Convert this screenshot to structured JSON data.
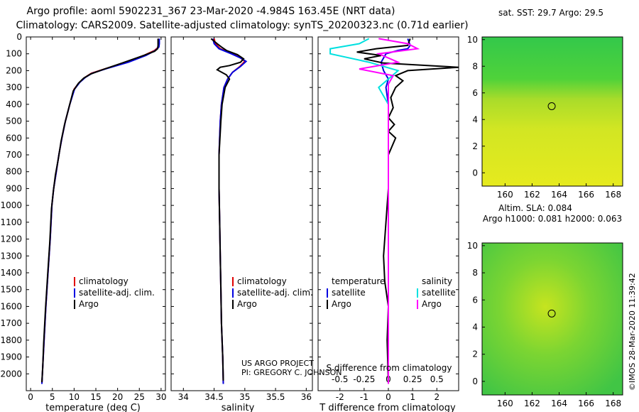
{
  "header": {
    "title_line1": "Argo profile: aoml 5902231_367 23-Mar-2020 -4.984S 163.45E (NRT data)",
    "title_line2": "Climatology: CARS2009. Satellite-adjusted climatology: synTS_20200323.nc (0.71d earlier)"
  },
  "colors": {
    "climatology": "#e00000",
    "satellite": "#0000e0",
    "argo": "#000000",
    "salinity_satellite": "#00e0e0",
    "salinity_argo": "#ff00ff"
  },
  "credits": {
    "line1": "US ARGO PROJECT",
    "line2": "PI: GREGORY C. JOHNSON",
    "stamp": "©IMOS 28-Mar-2020 11:39:42"
  },
  "chart_data": [
    {
      "type": "line",
      "panel": "temperature",
      "xlabel": "temperature (deg C)",
      "ylabel": "",
      "xlim": [
        -1,
        31
      ],
      "ylim": [
        2100,
        0
      ],
      "x_ticks": [
        0,
        5,
        10,
        15,
        20,
        25,
        30
      ],
      "y_ticks": [
        0,
        100,
        200,
        300,
        400,
        500,
        600,
        700,
        800,
        900,
        1000,
        1100,
        1200,
        1300,
        1400,
        1500,
        1600,
        1700,
        1800,
        1900,
        2000
      ],
      "legend": [
        "climatology",
        "satellite-adj. clim.",
        "Argo"
      ],
      "legend_placement": "lower-right",
      "series": [
        {
          "name": "climatology",
          "color": "#e00000",
          "points": [
            [
              29.5,
              10
            ],
            [
              29.5,
              40
            ],
            [
              29.4,
              60
            ],
            [
              28.5,
              80
            ],
            [
              26,
              110
            ],
            [
              22,
              150
            ],
            [
              17,
              190
            ],
            [
              14,
              215
            ],
            [
              12.5,
              240
            ],
            [
              11.2,
              270
            ],
            [
              10,
              310
            ],
            [
              9,
              400
            ],
            [
              8,
              500
            ],
            [
              7.2,
              600
            ],
            [
              6.5,
              700
            ],
            [
              5.9,
              800
            ],
            [
              5.3,
              900
            ],
            [
              4.9,
              1000
            ],
            [
              4.5,
              1200
            ],
            [
              4.0,
              1400
            ],
            [
              3.5,
              1600
            ],
            [
              3.1,
              1800
            ],
            [
              2.8,
              1950
            ],
            [
              2.6,
              2060
            ]
          ]
        },
        {
          "name": "satellite-adj. clim.",
          "color": "#0000e0",
          "points": [
            [
              29.6,
              10
            ],
            [
              29.6,
              40
            ],
            [
              29.5,
              60
            ],
            [
              28.7,
              80
            ],
            [
              26.5,
              110
            ],
            [
              22.5,
              150
            ],
            [
              17.2,
              190
            ],
            [
              14.2,
              215
            ],
            [
              12.6,
              240
            ],
            [
              11.3,
              270
            ],
            [
              10.1,
              310
            ],
            [
              9,
              400
            ],
            [
              8,
              500
            ],
            [
              7.2,
              600
            ],
            [
              6.5,
              700
            ],
            [
              5.9,
              800
            ],
            [
              5.3,
              900
            ],
            [
              4.9,
              1000
            ],
            [
              4.5,
              1200
            ],
            [
              4.0,
              1400
            ],
            [
              3.5,
              1600
            ],
            [
              3.1,
              1800
            ],
            [
              2.8,
              1950
            ],
            [
              2.6,
              2060
            ]
          ]
        },
        {
          "name": "Argo",
          "color": "#000000",
          "points": [
            [
              29.3,
              10
            ],
            [
              29.3,
              50
            ],
            [
              29.2,
              70
            ],
            [
              28.5,
              85
            ],
            [
              26,
              110
            ],
            [
              21,
              155
            ],
            [
              16.5,
              195
            ],
            [
              13.8,
              220
            ],
            [
              12.2,
              245
            ],
            [
              11,
              275
            ],
            [
              9.8,
              320
            ],
            [
              8.8,
              420
            ],
            [
              7.8,
              520
            ],
            [
              7,
              620
            ],
            [
              6.4,
              720
            ],
            [
              5.7,
              820
            ],
            [
              5.2,
              920
            ],
            [
              4.8,
              1020
            ],
            [
              4.4,
              1220
            ],
            [
              3.9,
              1420
            ],
            [
              3.4,
              1620
            ],
            [
              3.0,
              1820
            ],
            [
              2.8,
              1950
            ],
            [
              2.6,
              2050
            ]
          ]
        }
      ]
    },
    {
      "type": "line",
      "panel": "salinity",
      "xlabel": "salinity",
      "ylabel": "",
      "xlim": [
        33.8,
        36.1
      ],
      "ylim": [
        2100,
        0
      ],
      "x_ticks": [
        34,
        34.5,
        35,
        35.5,
        36
      ],
      "legend": [
        "climatology",
        "satellite-adj. clim.",
        "Argo"
      ],
      "legend_placement": "lower-right",
      "series": [
        {
          "name": "climatology",
          "color": "#e00000",
          "points": [
            [
              34.5,
              10
            ],
            [
              34.52,
              40
            ],
            [
              34.6,
              70
            ],
            [
              34.8,
              100
            ],
            [
              34.93,
              125
            ],
            [
              35.0,
              145
            ],
            [
              34.92,
              175
            ],
            [
              34.8,
              210
            ],
            [
              34.72,
              250
            ],
            [
              34.66,
              300
            ],
            [
              34.62,
              400
            ],
            [
              34.6,
              500
            ],
            [
              34.58,
              700
            ],
            [
              34.58,
              900
            ],
            [
              34.59,
              1100
            ],
            [
              34.6,
              1300
            ],
            [
              34.61,
              1500
            ],
            [
              34.62,
              1700
            ],
            [
              34.64,
              1900
            ],
            [
              34.65,
              2060
            ]
          ]
        },
        {
          "name": "satellite-adj. clim.",
          "color": "#0000e0",
          "points": [
            [
              34.48,
              10
            ],
            [
              34.5,
              40
            ],
            [
              34.58,
              70
            ],
            [
              34.78,
              100
            ],
            [
              34.93,
              125
            ],
            [
              35.02,
              145
            ],
            [
              34.93,
              175
            ],
            [
              34.8,
              210
            ],
            [
              34.72,
              250
            ],
            [
              34.66,
              300
            ],
            [
              34.62,
              400
            ],
            [
              34.6,
              500
            ],
            [
              34.58,
              700
            ],
            [
              34.58,
              900
            ],
            [
              34.59,
              1100
            ],
            [
              34.6,
              1300
            ],
            [
              34.61,
              1500
            ],
            [
              34.62,
              1700
            ],
            [
              34.64,
              1900
            ],
            [
              34.65,
              2060
            ]
          ]
        },
        {
          "name": "Argo",
          "color": "#000000",
          "points": [
            [
              34.45,
              10
            ],
            [
              34.55,
              40
            ],
            [
              34.62,
              60
            ],
            [
              34.7,
              80
            ],
            [
              34.88,
              105
            ],
            [
              34.98,
              130
            ],
            [
              34.93,
              150
            ],
            [
              34.75,
              170
            ],
            [
              34.6,
              180
            ],
            [
              34.55,
              195
            ],
            [
              34.7,
              225
            ],
            [
              34.75,
              250
            ],
            [
              34.68,
              300
            ],
            [
              34.63,
              400
            ],
            [
              34.61,
              500
            ],
            [
              34.58,
              700
            ],
            [
              34.58,
              900
            ],
            [
              34.59,
              1100
            ],
            [
              34.6,
              1300
            ],
            [
              34.61,
              1500
            ],
            [
              34.62,
              1700
            ],
            [
              34.64,
              1900
            ],
            [
              34.65,
              2040
            ]
          ]
        }
      ]
    },
    {
      "type": "line",
      "panel": "difference",
      "xlabel": "T difference from climatology",
      "ylabel": "",
      "xlim": [
        -2.9,
        2.9
      ],
      "ylim": [
        2100,
        0
      ],
      "x_ticks": [
        -2,
        -1,
        0,
        1,
        2
      ],
      "secondary_xlabel": "S difference from climatology",
      "secondary_xlim": [
        -0.725,
        0.725
      ],
      "secondary_x_ticks": [
        -0.5,
        -0.25,
        0,
        0.25,
        0.5
      ],
      "legend": [
        "temperature",
        "satellite",
        "Argo",
        "salinity",
        "satellite",
        "Argo"
      ],
      "legend_placement": "lower-center",
      "series": [
        {
          "name": "temperature satellite",
          "color": "#0000e0",
          "points": [
            [
              0.8,
              10
            ],
            [
              0.9,
              50
            ],
            [
              0.8,
              70
            ],
            [
              0.4,
              80
            ],
            [
              -0.1,
              100
            ],
            [
              -0.3,
              150
            ],
            [
              -0.2,
              200
            ],
            [
              0,
              250
            ],
            [
              -0.1,
              300
            ],
            [
              0,
              400
            ],
            [
              0,
              500
            ],
            [
              0,
              700
            ],
            [
              0,
              900
            ],
            [
              0,
              1100
            ],
            [
              0,
              1300
            ],
            [
              0,
              1500
            ],
            [
              0,
              1700
            ],
            [
              0,
              1900
            ],
            [
              0,
              2060
            ]
          ]
        },
        {
          "name": "temperature Argo",
          "color": "#000000",
          "points": [
            [
              0.9,
              10
            ],
            [
              0.8,
              50
            ],
            [
              -0.5,
              70
            ],
            [
              -1.3,
              90
            ],
            [
              -0.3,
              110
            ],
            [
              -1.0,
              130
            ],
            [
              -0.2,
              155
            ],
            [
              2.9,
              180
            ],
            [
              0.8,
              200
            ],
            [
              0.3,
              230
            ],
            [
              0.6,
              260
            ],
            [
              0.3,
              300
            ],
            [
              0.1,
              360
            ],
            [
              0.2,
              420
            ],
            [
              0.0,
              480
            ],
            [
              0.25,
              520
            ],
            [
              0.0,
              560
            ],
            [
              0.3,
              600
            ],
            [
              0.0,
              700
            ],
            [
              0.0,
              900
            ],
            [
              -0.1,
              1100
            ],
            [
              -0.2,
              1300
            ],
            [
              -0.15,
              1450
            ],
            [
              0.0,
              1600
            ],
            [
              -0.05,
              1800
            ],
            [
              0.0,
              2060
            ]
          ]
        },
        {
          "name": "salinity satellite",
          "color": "#00e0e0",
          "points": [
            [
              -0.2,
              10
            ],
            [
              -0.3,
              40
            ],
            [
              -0.6,
              70
            ],
            [
              -0.6,
              100
            ],
            [
              -0.2,
              150
            ],
            [
              0.1,
              200
            ],
            [
              0.0,
              250
            ],
            [
              -0.1,
              300
            ],
            [
              0,
              400
            ],
            [
              0,
              600
            ],
            [
              0,
              900
            ],
            [
              0,
              1200
            ],
            [
              0,
              1500
            ],
            [
              0,
              1800
            ],
            [
              0,
              2060
            ]
          ]
        },
        {
          "name": "salinity Argo",
          "color": "#ff00ff",
          "points": [
            [
              -0.1,
              10
            ],
            [
              0.2,
              40
            ],
            [
              0.3,
              70
            ],
            [
              -0.1,
              100
            ],
            [
              0.1,
              150
            ],
            [
              -0.3,
              190
            ],
            [
              0.05,
              230
            ],
            [
              0.0,
              280
            ],
            [
              0,
              400
            ],
            [
              0,
              600
            ],
            [
              0,
              900
            ],
            [
              0,
              1200
            ],
            [
              0,
              1500
            ],
            [
              0,
              1800
            ],
            [
              0,
              2060
            ]
          ]
        }
      ]
    },
    {
      "type": "heatmap",
      "panel": "sst_map",
      "title": "sat. SST: 29.7 Argo: 29.5",
      "x_ticks": [
        160,
        162,
        164,
        166,
        168
      ],
      "y_ticks": [
        0,
        2,
        4,
        6,
        8,
        10
      ],
      "xlim": [
        158.3,
        168.7
      ],
      "ylim": [
        -1,
        10.2
      ],
      "marker": {
        "lon": 163.45,
        "lat": 5.0
      }
    },
    {
      "type": "heatmap",
      "panel": "sla_map",
      "title": "Altim. SLA: 0.084",
      "subtitle": "Argo h1000: 0.081 h2000: 0.063",
      "x_ticks": [
        160,
        162,
        164,
        166,
        168
      ],
      "y_ticks": [
        0,
        2,
        4,
        6,
        8,
        10
      ],
      "xlim": [
        158.3,
        168.7
      ],
      "ylim": [
        -1,
        10.2
      ],
      "marker": {
        "lon": 163.45,
        "lat": 5.0
      }
    }
  ]
}
